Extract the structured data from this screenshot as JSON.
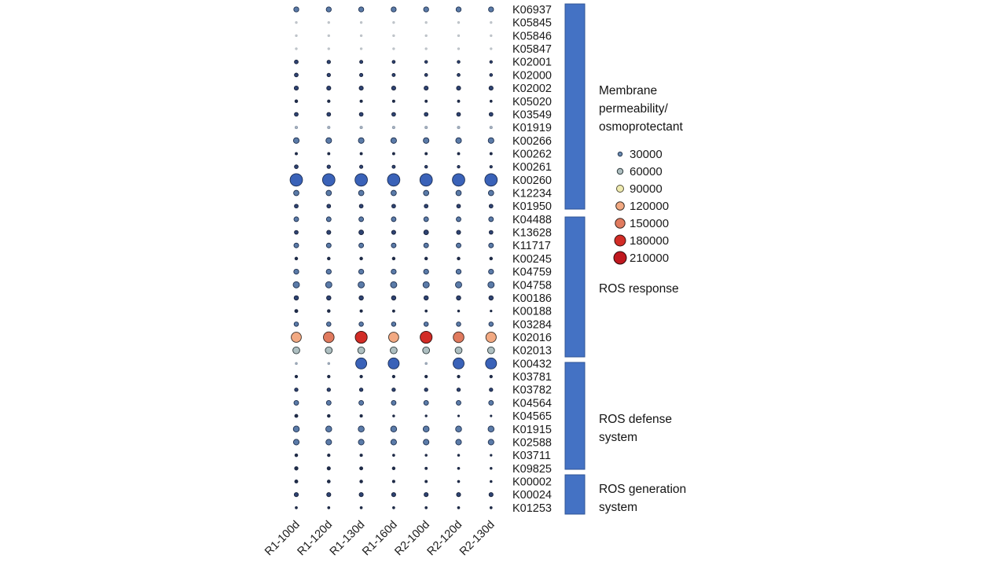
{
  "chart_data": {
    "type": "scatter",
    "description": "Bubble matrix of KEGG ortholog abundance per sample; dot size and color encode abundance per legend scale",
    "columns": [
      "R1-100d",
      "R1-120d",
      "R1-130d",
      "R1-160d",
      "R2-100d",
      "R2-120d",
      "R2-130d"
    ],
    "rows": [
      {
        "id": "K06937",
        "r": 3.2,
        "c": "blueMedium"
      },
      {
        "id": "K05845",
        "r": 1.2,
        "c": "ghost"
      },
      {
        "id": "K05846",
        "r": 1.2,
        "c": "ghost"
      },
      {
        "id": "K05847",
        "r": 1.2,
        "c": "ghost"
      },
      {
        "id": "K02001",
        "rs": [
          2.4,
          2.2,
          2.0,
          1.9,
          1.8,
          1.8,
          1.7
        ],
        "c": "blueSmall"
      },
      {
        "id": "K02000",
        "rs": [
          2.4,
          2.2,
          2.1,
          2.0,
          1.9,
          1.9,
          1.8
        ],
        "c": "blueSmall"
      },
      {
        "id": "K02002",
        "r": 2.6,
        "c": "blueSmall"
      },
      {
        "id": "K05020",
        "rs": [
          1.8,
          1.7,
          1.6,
          1.6,
          1.5,
          1.5,
          1.4
        ],
        "c": "blueTiny"
      },
      {
        "id": "K03549",
        "r": 2.4,
        "c": "blueSmall"
      },
      {
        "id": "K01919",
        "r": 1.6,
        "c": "faint"
      },
      {
        "id": "K00266",
        "r": 3.6,
        "c": "blueMedium"
      },
      {
        "id": "K00262",
        "r": 1.5,
        "c": "blueTiny"
      },
      {
        "id": "K00261",
        "rs": [
          2.4,
          2.2,
          2.1,
          2.0,
          1.8,
          1.7,
          1.6
        ],
        "c": "blueSmall"
      },
      {
        "id": "K00260",
        "r": 7.9,
        "c": "blueLarge"
      },
      {
        "id": "K12234",
        "r": 3.4,
        "c": "blueMedium"
      },
      {
        "id": "K01950",
        "r": 2.4,
        "c": "blueSmall"
      },
      {
        "id": "K04488",
        "r": 3.0,
        "c": "blueMedium"
      },
      {
        "id": "K13628",
        "rs": [
          2.4,
          2.6,
          3.0,
          2.6,
          3.0,
          2.6,
          2.4
        ],
        "c": "blueSmall"
      },
      {
        "id": "K11717",
        "r": 3.0,
        "c": "blueMedium"
      },
      {
        "id": "K00245",
        "r": 1.8,
        "c": "blueTiny"
      },
      {
        "id": "K04759",
        "r": 3.2,
        "c": "blueMedium"
      },
      {
        "id": "K04758",
        "r": 4.0,
        "c": "blueMedium"
      },
      {
        "id": "K00186",
        "r": 2.8,
        "c": "blueSmall"
      },
      {
        "id": "K00188",
        "rs": [
          2.0,
          1.8,
          1.6,
          1.5,
          1.4,
          1.3,
          1.2
        ],
        "c": "blueTiny"
      },
      {
        "id": "K03284",
        "r": 2.8,
        "c": "blueMedium"
      },
      {
        "id": "K02016",
        "rs": [
          6.4,
          6.8,
          7.6,
          6.4,
          7.6,
          6.8,
          6.6
        ],
        "cs": [
          "orangeLight",
          "salmon",
          "red",
          "orangeLight",
          "red",
          "salmon",
          "orangeLight"
        ]
      },
      {
        "id": "K02013",
        "r": 4.4,
        "c": "gray"
      },
      {
        "id": "K00432",
        "rs": [
          1.3,
          1.3,
          7.0,
          7.0,
          1.3,
          7.0,
          7.0
        ],
        "cs": [
          "faint",
          "faint",
          "blueLarge",
          "blueLarge",
          "faint",
          "blueLarge",
          "blueLarge"
        ]
      },
      {
        "id": "K03781",
        "r": 1.7,
        "c": "blueTiny"
      },
      {
        "id": "K03782",
        "r": 2.2,
        "c": "blueSmall"
      },
      {
        "id": "K04564",
        "r": 3.0,
        "c": "blueMedium"
      },
      {
        "id": "K04565",
        "rs": [
          2.0,
          1.8,
          1.6,
          1.3,
          1.2,
          1.1,
          1.1
        ],
        "c": "blueTiny"
      },
      {
        "id": "K01915",
        "r": 3.8,
        "c": "blueMedium"
      },
      {
        "id": "K02588",
        "r": 3.6,
        "c": "blueMedium"
      },
      {
        "id": "K03711",
        "rs": [
          1.8,
          1.7,
          1.6,
          1.4,
          1.3,
          1.3,
          1.2
        ],
        "c": "blueTiny"
      },
      {
        "id": "K09825",
        "rs": [
          2.2,
          2.1,
          2.0,
          1.8,
          1.5,
          1.4,
          1.3
        ],
        "c": "blueTiny"
      },
      {
        "id": "K00002",
        "rs": [
          2.0,
          1.9,
          1.8,
          1.6,
          1.5,
          1.4,
          1.3
        ],
        "c": "blueTiny"
      },
      {
        "id": "K00024",
        "r": 2.6,
        "c": "blueSmall"
      },
      {
        "id": "K01253",
        "r": 1.4,
        "c": "blueTiny"
      }
    ],
    "groups": [
      {
        "label": "Membrane\npermeability/\nosmoprotectant",
        "start": 0,
        "end": 15
      },
      {
        "label": "ROS response",
        "start": 16,
        "end": 26
      },
      {
        "label": "ROS defense\nsystem",
        "start": 27,
        "end": 35
      },
      {
        "label": "ROS generation\nsystem",
        "start": 36,
        "end": 38
      }
    ],
    "legend": {
      "position": "right",
      "items": [
        {
          "value": "30000",
          "r": 2.7,
          "color": "legendBlue"
        },
        {
          "value": "60000",
          "r": 3.7,
          "color": "gray"
        },
        {
          "value": "90000",
          "r": 4.5,
          "color": "yellow"
        },
        {
          "value": "120000",
          "r": 5.3,
          "color": "orangeLight"
        },
        {
          "value": "150000",
          "r": 6.2,
          "color": "salmon"
        },
        {
          "value": "180000",
          "r": 7.0,
          "color": "red"
        },
        {
          "value": "210000",
          "r": 8.0,
          "color": "darkRed"
        }
      ]
    },
    "palette": {
      "blueLarge": {
        "fill": "#3a62b8",
        "stroke": "#1b2e55"
      },
      "blueMedium": {
        "fill": "#5b7ba8",
        "stroke": "#1e3050"
      },
      "blueSmall": {
        "fill": "#2e4372",
        "stroke": "#16203a"
      },
      "blueTiny": {
        "fill": "#1f2b47",
        "stroke": "#1f2b47"
      },
      "faint": {
        "fill": "#a9b4c2",
        "stroke": "#8d9aab"
      },
      "ghost": {
        "fill": "#c6cbd0",
        "stroke": "#b8bec4"
      },
      "gray": {
        "fill": "#aebfc1",
        "stroke": "#2f3b3d"
      },
      "yellow": {
        "fill": "#eeeab0",
        "stroke": "#55513a"
      },
      "orangeLight": {
        "fill": "#f2a982",
        "stroke": "#3a2e26"
      },
      "salmon": {
        "fill": "#e07a5e",
        "stroke": "#3a2620"
      },
      "red": {
        "fill": "#d22c26",
        "stroke": "#32110f"
      },
      "darkRed": {
        "fill": "#c0181f",
        "stroke": "#2e0a0c"
      },
      "legendBlue": {
        "fill": "#6b8ab0",
        "stroke": "#24364f"
      }
    },
    "bar_color": "#4472c4",
    "bar_border": "#2f5496",
    "grid": false
  }
}
